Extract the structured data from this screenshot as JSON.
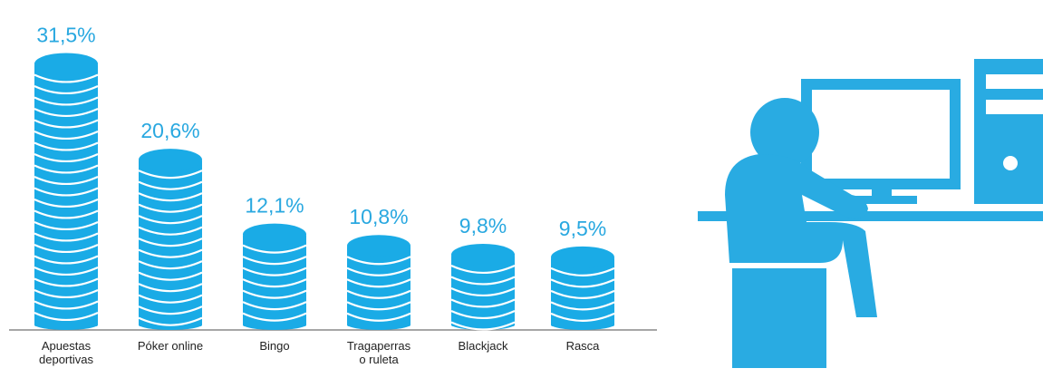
{
  "chart_data": {
    "type": "bar",
    "categories": [
      "Apuestas deportivas",
      "Póker online",
      "Bingo",
      "Tragaperras o ruleta",
      "Blackjack",
      "Rasca"
    ],
    "values": [
      31.5,
      20.6,
      12.1,
      10.8,
      9.8,
      9.5
    ],
    "value_labels": [
      "31,5%",
      "20,6%",
      "12,1%",
      "10,8%",
      "9,8%",
      "9,5%"
    ],
    "color": "#1aabe6"
  }
}
